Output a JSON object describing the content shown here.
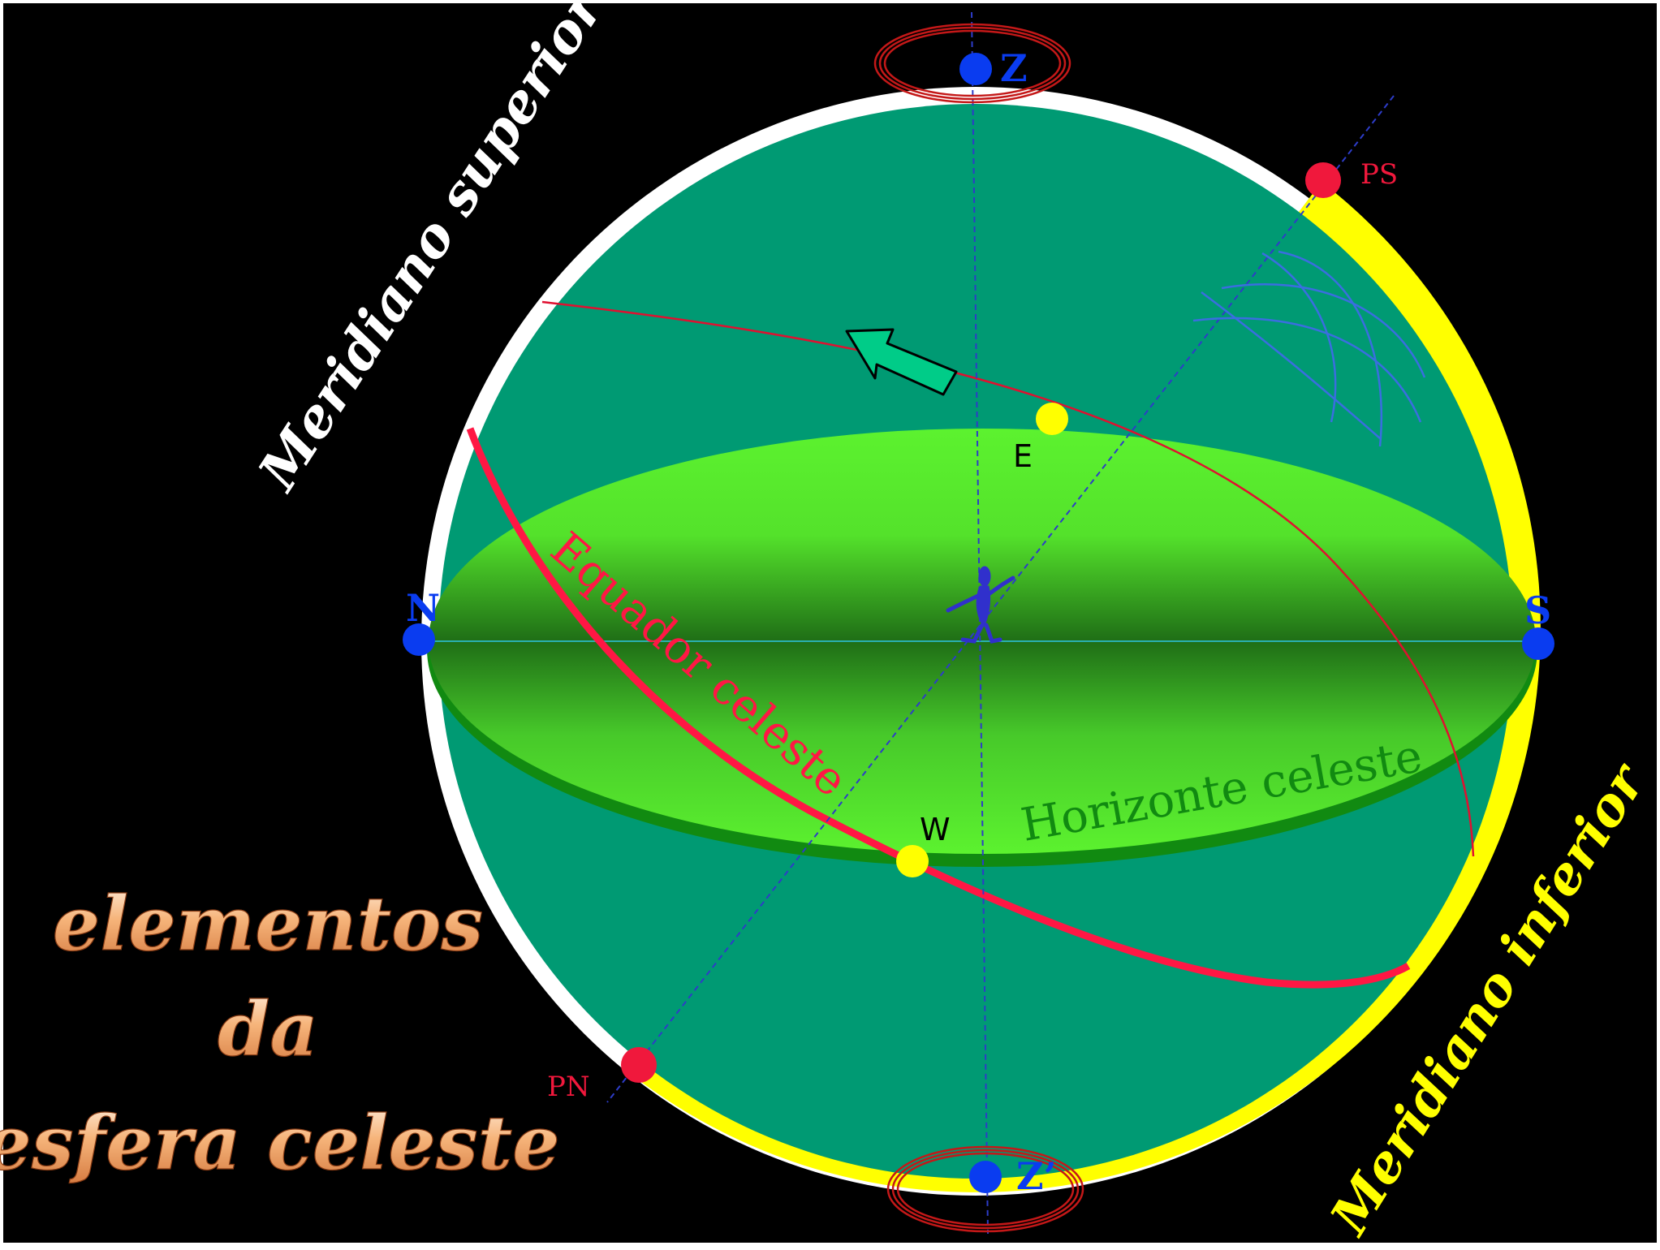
{
  "diagram": {
    "zenith_label": "Z",
    "nadir_label": "Z’",
    "north_label": "N",
    "south_label": "S",
    "east_label": "E",
    "west_label": "W",
    "south_pole_label": "PS",
    "north_pole_label": "PN",
    "upper_meridian_label": "Meridiano superior",
    "lower_meridian_label": "Meridiano inferior",
    "equator_label": "Equador celeste",
    "horizon_label": "Horizonte celeste"
  },
  "title": {
    "line1": "elementos",
    "line2": "da",
    "line3": "esfera celeste"
  },
  "colors": {
    "background": "#000000",
    "sphere": "#009a73",
    "horizon_light": "#5cf22f",
    "horizon_dark": "#1f6e16",
    "horizon_rim": "#118a11",
    "upper_meridian": "#ffffff",
    "lower_meridian": "#ffff00",
    "equator": "#ff1744",
    "axis_dashes": "#2d3cc8",
    "point_blue": "#0a3cf0",
    "point_red": "#f0183c",
    "point_yellow": "#ffff00",
    "title_fill": "#f4a86a",
    "marker_ring": "#c41818",
    "arrow_fill": "#00cc88"
  }
}
